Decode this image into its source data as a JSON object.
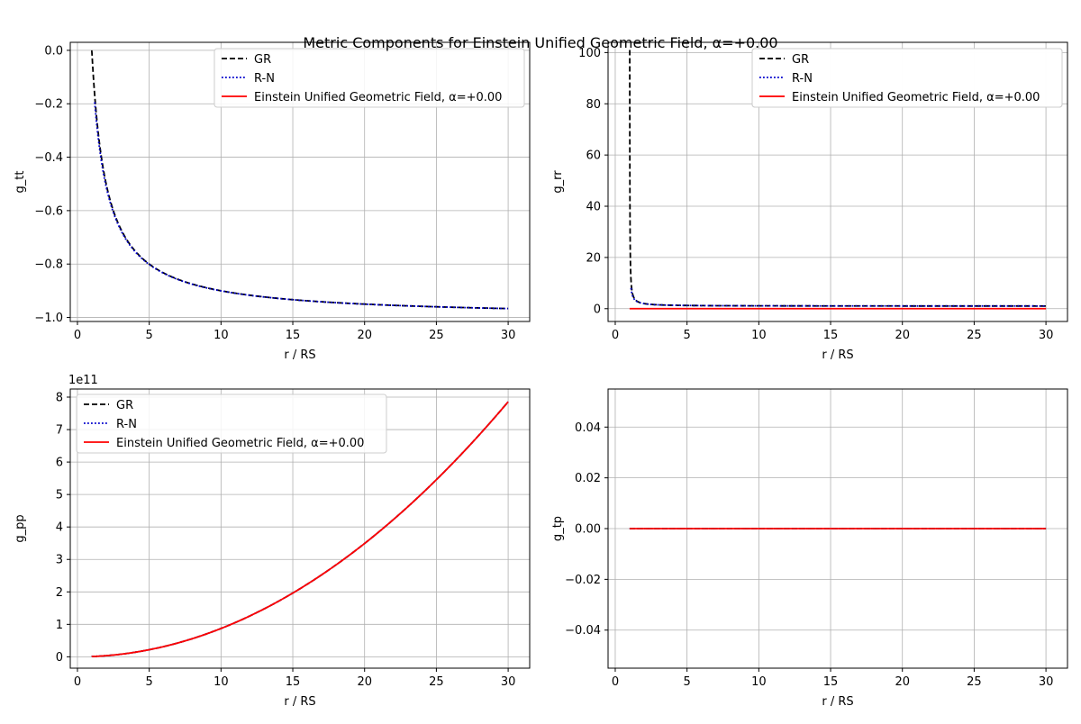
{
  "figure": {
    "title": "Metric Components for Einstein Unified Geometric Field, α=+0.00"
  },
  "colors": {
    "GR": "#000000",
    "R-N": "#0000cc",
    "Einstein Unified Geometric Field, α=+0.00": "#ff0000",
    "grid": "#b0b0b0"
  },
  "chart_data": [
    {
      "type": "line",
      "ylabel": "g_tt",
      "xlabel": "r / RS",
      "xlim": [
        -0.5,
        31.5
      ],
      "ylim": [
        -1.015,
        0.03
      ],
      "xticks": [
        0,
        5,
        10,
        15,
        20,
        25,
        30
      ],
      "yticks": [
        -1.0,
        -0.8,
        -0.6,
        -0.4,
        -0.2,
        0.0
      ],
      "ytick_labels": [
        "−1.0",
        "−0.8",
        "−0.6",
        "−0.4",
        "−0.2",
        "0.0"
      ],
      "offset_text": "",
      "grid": true,
      "legend": "top-center",
      "series": [
        {
          "name": "GR",
          "style": "dashed",
          "func": "gr_tt",
          "x_start": 1.0,
          "x_end": 30
        },
        {
          "name": "R-N",
          "style": "dotted",
          "func": "rn_tt",
          "x_start": 1.2,
          "x_end": 30
        },
        {
          "name": "Einstein Unified Geometric Field, α=+0.00",
          "style": "solid",
          "func": "none",
          "x_start": 1.0,
          "x_end": 30
        }
      ]
    },
    {
      "type": "line",
      "ylabel": "g_rr",
      "xlabel": "r / RS",
      "xlim": [
        -0.5,
        31.5
      ],
      "ylim": [
        -5,
        104
      ],
      "xticks": [
        0,
        5,
        10,
        15,
        20,
        25,
        30
      ],
      "yticks": [
        0,
        20,
        40,
        60,
        80,
        100
      ],
      "ytick_labels": [
        "0",
        "20",
        "40",
        "60",
        "80",
        "100"
      ],
      "offset_text": "",
      "grid": true,
      "legend": "top-right",
      "series": [
        {
          "name": "GR",
          "style": "dashed",
          "func": "gr_rr",
          "x_start": 1.01,
          "x_end": 30
        },
        {
          "name": "R-N",
          "style": "dotted",
          "func": "rn_rr",
          "x_start": 1.1,
          "x_end": 30
        },
        {
          "name": "Einstein Unified Geometric Field, α=+0.00",
          "style": "solid",
          "func": "zero",
          "x_start": 1.0,
          "x_end": 30
        }
      ]
    },
    {
      "type": "line",
      "ylabel": "g_pp",
      "xlabel": "r / RS",
      "xlim": [
        -0.5,
        31.5
      ],
      "ylim": [
        -0.35,
        8.25
      ],
      "xticks": [
        0,
        5,
        10,
        15,
        20,
        25,
        30
      ],
      "yticks": [
        0,
        1,
        2,
        3,
        4,
        5,
        6,
        7,
        8
      ],
      "ytick_labels": [
        "0",
        "1",
        "2",
        "3",
        "4",
        "5",
        "6",
        "7",
        "8"
      ],
      "offset_text": "1e11",
      "grid": true,
      "legend": "top-left",
      "series": [
        {
          "name": "GR",
          "style": "dashed",
          "func": "pp",
          "x_start": 1.0,
          "x_end": 30
        },
        {
          "name": "R-N",
          "style": "dotted",
          "func": "pp",
          "x_start": 1.0,
          "x_end": 30
        },
        {
          "name": "Einstein Unified Geometric Field, α=+0.00",
          "style": "solid",
          "func": "pp",
          "x_start": 1.0,
          "x_end": 30
        }
      ]
    },
    {
      "type": "line",
      "ylabel": "g_tp",
      "xlabel": "r / RS",
      "xlim": [
        -0.5,
        31.5
      ],
      "ylim": [
        -0.055,
        0.055
      ],
      "xticks": [
        0,
        5,
        10,
        15,
        20,
        25,
        30
      ],
      "yticks": [
        -0.04,
        -0.02,
        0.0,
        0.02,
        0.04
      ],
      "ytick_labels": [
        "−0.04",
        "−0.02",
        "0.00",
        "0.02",
        "0.04"
      ],
      "offset_text": "",
      "grid": true,
      "legend": "top-right",
      "series": [
        {
          "name": "GR",
          "style": "dashed",
          "func": "zero",
          "x_start": 1.0,
          "x_end": 30
        },
        {
          "name": "R-N",
          "style": "dotted",
          "func": "zero",
          "x_start": 1.0,
          "x_end": 30
        },
        {
          "name": "Einstein Unified Geometric Field, α=+0.00",
          "style": "solid",
          "func": "zero",
          "x_start": 1.0,
          "x_end": 30
        }
      ]
    }
  ]
}
